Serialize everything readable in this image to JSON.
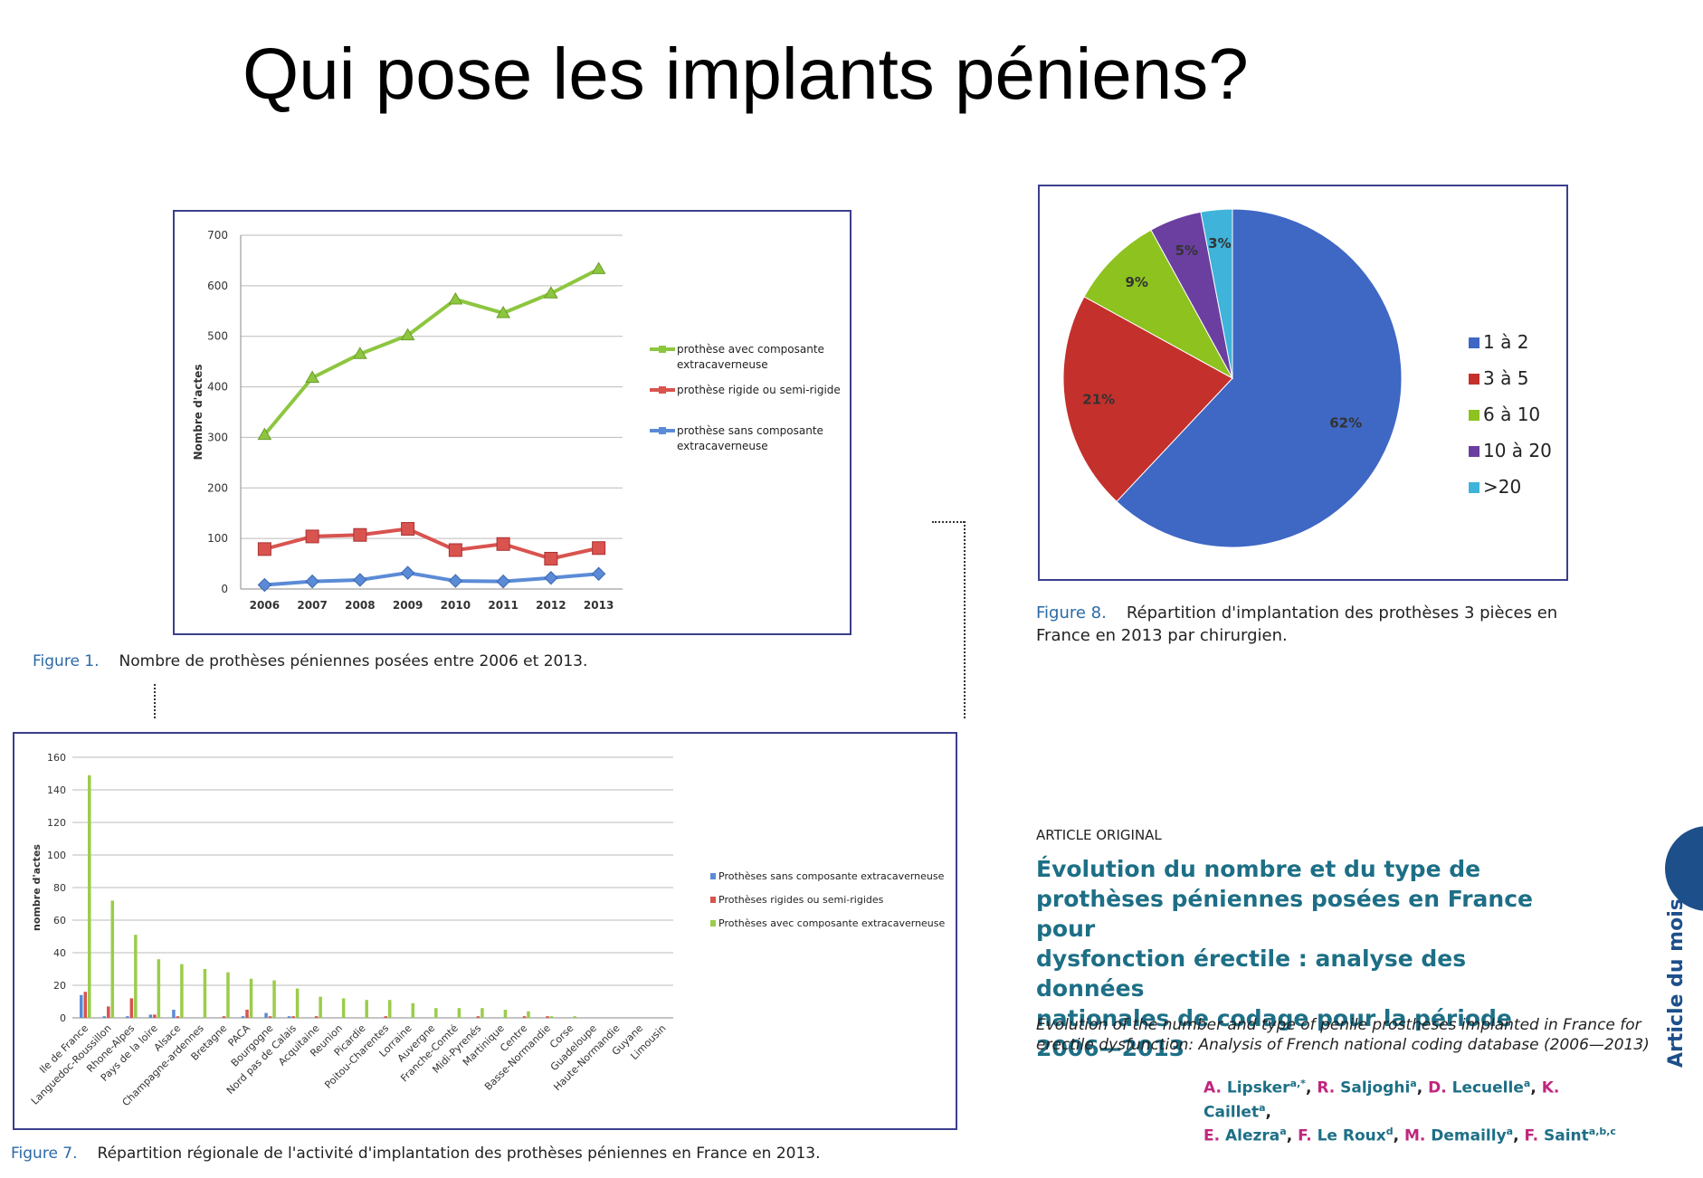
{
  "title": "Qui pose les implants péniens?",
  "figure1": {
    "caption_label": "Figure 1.",
    "caption_text": "Nombre de prothèses péniennes posées entre 2006 et 2013.",
    "chart_data": {
      "type": "line",
      "x": [
        "2006",
        "2007",
        "2008",
        "2009",
        "2010",
        "2011",
        "2012",
        "2013"
      ],
      "ylabel": "Nombre d'actes",
      "ylim": [
        0,
        700
      ],
      "yticks": [
        0,
        100,
        200,
        300,
        400,
        500,
        600,
        700
      ],
      "grid": true,
      "legend_position": "right",
      "series": [
        {
          "name_lines": [
            "prothèse avec composante",
            "extracaverneuse"
          ],
          "color": "#8dc63f",
          "marker": "triangle",
          "values": [
            305,
            418,
            465,
            502,
            573,
            546,
            585,
            633
          ]
        },
        {
          "name_lines": [
            "prothèse rigide ou semi-rigide"
          ],
          "color": "#d9534f",
          "marker": "square",
          "values": [
            79,
            104,
            107,
            119,
            77,
            89,
            60,
            81
          ]
        },
        {
          "name_lines": [
            "prothèse sans composante",
            "extracaverneuse"
          ],
          "color": "#5b8bd6",
          "marker": "diamond",
          "values": [
            8,
            15,
            18,
            32,
            16,
            15,
            22,
            30
          ]
        }
      ]
    }
  },
  "figure8": {
    "caption_label": "Figure 8.",
    "caption_line1": "Répartition d'implantation des prothèses 3 pièces en",
    "caption_line2": "France en 2013 par chirurgien.",
    "chart_data": {
      "type": "pie",
      "legend_position": "right",
      "slices": [
        {
          "label": "1 à 2",
          "value": 62,
          "text": "62%",
          "color": "#3f67c4"
        },
        {
          "label": "3 à 5",
          "value": 21,
          "text": "21%",
          "color": "#c4302b"
        },
        {
          "label": "6 à 10",
          "value": 9,
          "text": "9%",
          "color": "#8dc21f"
        },
        {
          "label": "10 à 20",
          "value": 5,
          "text": "5%",
          "color": "#6b3fa0"
        },
        {
          "label": ">20",
          "value": 3,
          "text": "3%",
          "color": "#3fb3d9"
        }
      ]
    }
  },
  "figure7": {
    "caption_label": "Figure 7.",
    "caption_text": "Répartition régionale de l'activité d'implantation des prothèses péniennes en France en 2013.",
    "chart_data": {
      "type": "bar",
      "ylabel": "nombre d'actes",
      "ylim": [
        0,
        160
      ],
      "yticks": [
        0,
        20,
        40,
        60,
        80,
        100,
        120,
        140,
        160
      ],
      "grid": true,
      "legend_position": "right",
      "categories": [
        "Ile de France",
        "Languedoc-Roussillon",
        "Rhone-Alpes",
        "Pays de la loire",
        "Alsace",
        "Champagne-ardennes",
        "Bretagne",
        "PACA",
        "Bourgogne",
        "Nord pas de Calais",
        "Acquitaine",
        "Reunion",
        "Picardie",
        "Poitou-Charentes",
        "Lorraine",
        "Auvergne",
        "Franche-Comté",
        "Midi-Pyrenés",
        "Martinique",
        "Centre",
        "Basse-Normandie",
        "Corse",
        "Guadeloupe",
        "Haute-Normandie",
        "Guyane",
        "Limousin"
      ],
      "series": [
        {
          "name": "Prothèses sans composante extracaverneuse",
          "color": "#5b8bd6",
          "values": [
            14,
            1,
            1,
            2,
            5,
            0,
            0,
            1,
            3,
            1,
            0,
            0,
            0,
            0,
            0,
            0,
            0,
            0,
            0,
            0,
            0,
            0,
            0,
            0,
            0,
            0
          ]
        },
        {
          "name": "Prothèses rigides ou semi-rigides",
          "color": "#d9534f",
          "values": [
            16,
            7,
            12,
            2,
            1,
            0,
            1,
            5,
            1,
            1,
            1,
            0,
            0,
            1,
            0,
            0,
            0,
            1,
            0,
            1,
            1,
            0,
            0,
            0,
            0,
            0
          ]
        },
        {
          "name": "Prothèses avec composante extracaverneuse",
          "color": "#9acd4a",
          "values": [
            149,
            72,
            51,
            36,
            33,
            30,
            28,
            24,
            23,
            18,
            13,
            12,
            11,
            11,
            9,
            6,
            6,
            6,
            5,
            4,
            1,
            1,
            0,
            0,
            0,
            0
          ]
        }
      ]
    }
  },
  "article": {
    "kicker": "ARTICLE ORIGINAL",
    "title_lines": [
      "Évolution du nombre et du type de",
      "prothèses péniennes posées en France pour",
      "dysfonction érectile : analyse des données",
      "nationales de codage pour la période",
      "2006—2013"
    ],
    "subtitle_lines": [
      "Evolution of the number and type of penile prostheses implanted in France for",
      "erectile dysfunction: Analysis of French national coding database (2006—2013)"
    ],
    "authors_line1": [
      {
        "initial": "A.",
        "name": "Lipsker",
        "sup": "a,*"
      },
      {
        "initial": "R.",
        "name": "Saljoghi",
        "sup": "a"
      },
      {
        "initial": "D.",
        "name": "Lecuelle",
        "sup": "a"
      },
      {
        "initial": "K.",
        "name": "Caillet",
        "sup": "a"
      }
    ],
    "authors_line2": [
      {
        "initial": "E.",
        "name": "Alezra",
        "sup": "a"
      },
      {
        "initial": "F.",
        "name": "Le Roux",
        "sup": "d"
      },
      {
        "initial": "M.",
        "name": "Demailly",
        "sup": "a"
      },
      {
        "initial": "F.",
        "name": "Saint",
        "sup": "a,b,c"
      }
    ],
    "side_label": "Article du mois"
  }
}
